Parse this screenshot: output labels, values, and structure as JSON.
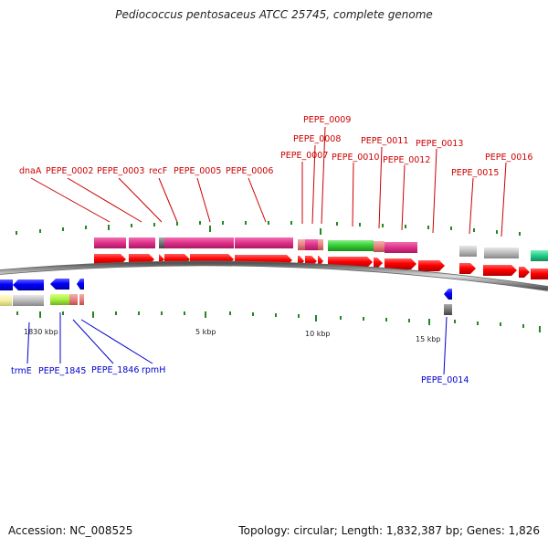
{
  "title": "Pediococcus pentosaceus ATCC 25745, complete genome",
  "footer": {
    "accession": "Accession: NC_008525",
    "topology": "Topology: circular; Length: 1,832,387 bp; Genes: 1,826"
  },
  "colors": {
    "forward_label": "#cc0000",
    "reverse_label": "#0000cc",
    "cds_forward": "#ff0000",
    "cds_reverse": "#0000ff",
    "cog_magenta": "#e8308a",
    "cog_green": "#33cc33",
    "cog_grey": "#bbbbbb",
    "cog_salmon": "#e88080",
    "cog_yellow": "#f5f0a0",
    "cog_teal": "#22cc88",
    "backbone": "#888888",
    "tick": "#228822"
  },
  "scale_labels": [
    "1830 kbp",
    "5 kbp",
    "10 kbp",
    "15 kbp"
  ],
  "forward_genes": [
    "dnaA",
    "PEPE_0002",
    "PEPE_0003",
    "recF",
    "PEPE_0005",
    "PEPE_0006",
    "PEPE_0007",
    "PEPE_0008",
    "PEPE_0009",
    "PEPE_0010",
    "PEPE_0011",
    "PEPE_0012",
    "PEPE_0013",
    "PEPE_0015",
    "PEPE_0016"
  ],
  "reverse_genes": [
    "trmE",
    "PEPE_1845",
    "PEPE_1846",
    "rpmH",
    "PEPE_0014"
  ]
}
